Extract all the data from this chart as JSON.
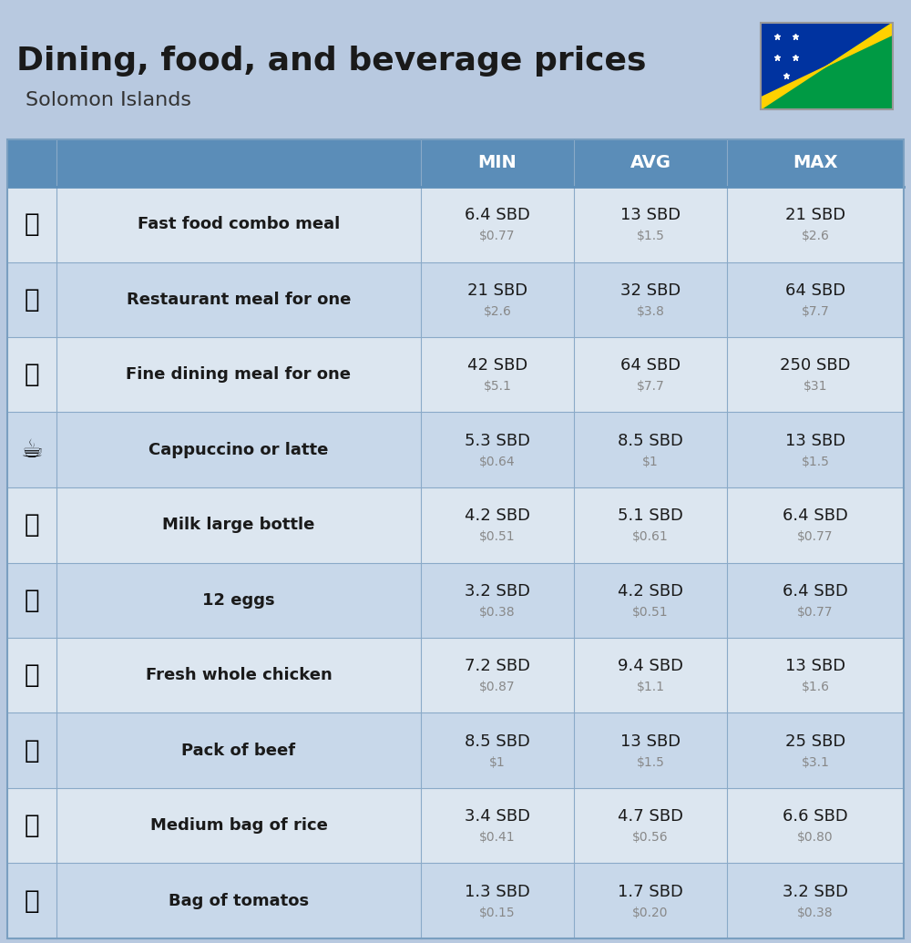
{
  "title": "Dining, food, and beverage prices",
  "subtitle": "Solomon Islands",
  "bg_color": "#b8c9e0",
  "header_bg": "#5b8db8",
  "header_text_color": "#ffffff",
  "row_bg_light": "#dce6f0",
  "row_bg_dark": "#c8d8ea",
  "col_headers": [
    "MIN",
    "AVG",
    "MAX"
  ],
  "items": [
    {
      "label": "Fast food combo meal",
      "emoji": "🍔",
      "min_sbd": "6.4 SBD",
      "min_usd": "$0.77",
      "avg_sbd": "13 SBD",
      "avg_usd": "$1.5",
      "max_sbd": "21 SBD",
      "max_usd": "$2.6"
    },
    {
      "label": "Restaurant meal for one",
      "emoji": "🍳",
      "min_sbd": "21 SBD",
      "min_usd": "$2.6",
      "avg_sbd": "32 SBD",
      "avg_usd": "$3.8",
      "max_sbd": "64 SBD",
      "max_usd": "$7.7"
    },
    {
      "label": "Fine dining meal for one",
      "emoji": "🍽️",
      "min_sbd": "42 SBD",
      "min_usd": "$5.1",
      "avg_sbd": "64 SBD",
      "avg_usd": "$7.7",
      "max_sbd": "250 SBD",
      "max_usd": "$31"
    },
    {
      "label": "Cappuccino or latte",
      "emoji": "☕",
      "min_sbd": "5.3 SBD",
      "min_usd": "$0.64",
      "avg_sbd": "8.5 SBD",
      "avg_usd": "$1",
      "max_sbd": "13 SBD",
      "max_usd": "$1.5"
    },
    {
      "label": "Milk large bottle",
      "emoji": "🥛",
      "min_sbd": "4.2 SBD",
      "min_usd": "$0.51",
      "avg_sbd": "5.1 SBD",
      "avg_usd": "$0.61",
      "max_sbd": "6.4 SBD",
      "max_usd": "$0.77"
    },
    {
      "label": "12 eggs",
      "emoji": "🥚",
      "min_sbd": "3.2 SBD",
      "min_usd": "$0.38",
      "avg_sbd": "4.2 SBD",
      "avg_usd": "$0.51",
      "max_sbd": "6.4 SBD",
      "max_usd": "$0.77"
    },
    {
      "label": "Fresh whole chicken",
      "emoji": "🍗",
      "min_sbd": "7.2 SBD",
      "min_usd": "$0.87",
      "avg_sbd": "9.4 SBD",
      "avg_usd": "$1.1",
      "max_sbd": "13 SBD",
      "max_usd": "$1.6"
    },
    {
      "label": "Pack of beef",
      "emoji": "🥩",
      "min_sbd": "8.5 SBD",
      "min_usd": "$1",
      "avg_sbd": "13 SBD",
      "avg_usd": "$1.5",
      "max_sbd": "25 SBD",
      "max_usd": "$3.1"
    },
    {
      "label": "Medium bag of rice",
      "emoji": "🌾",
      "min_sbd": "3.4 SBD",
      "min_usd": "$0.41",
      "avg_sbd": "4.7 SBD",
      "avg_usd": "$0.56",
      "max_sbd": "6.6 SBD",
      "max_usd": "$0.80"
    },
    {
      "label": "Bag of tomatos",
      "emoji": "🍅",
      "min_sbd": "1.3 SBD",
      "min_usd": "$0.15",
      "avg_sbd": "1.7 SBD",
      "avg_usd": "$0.20",
      "max_sbd": "3.2 SBD",
      "max_usd": "$0.38"
    }
  ]
}
